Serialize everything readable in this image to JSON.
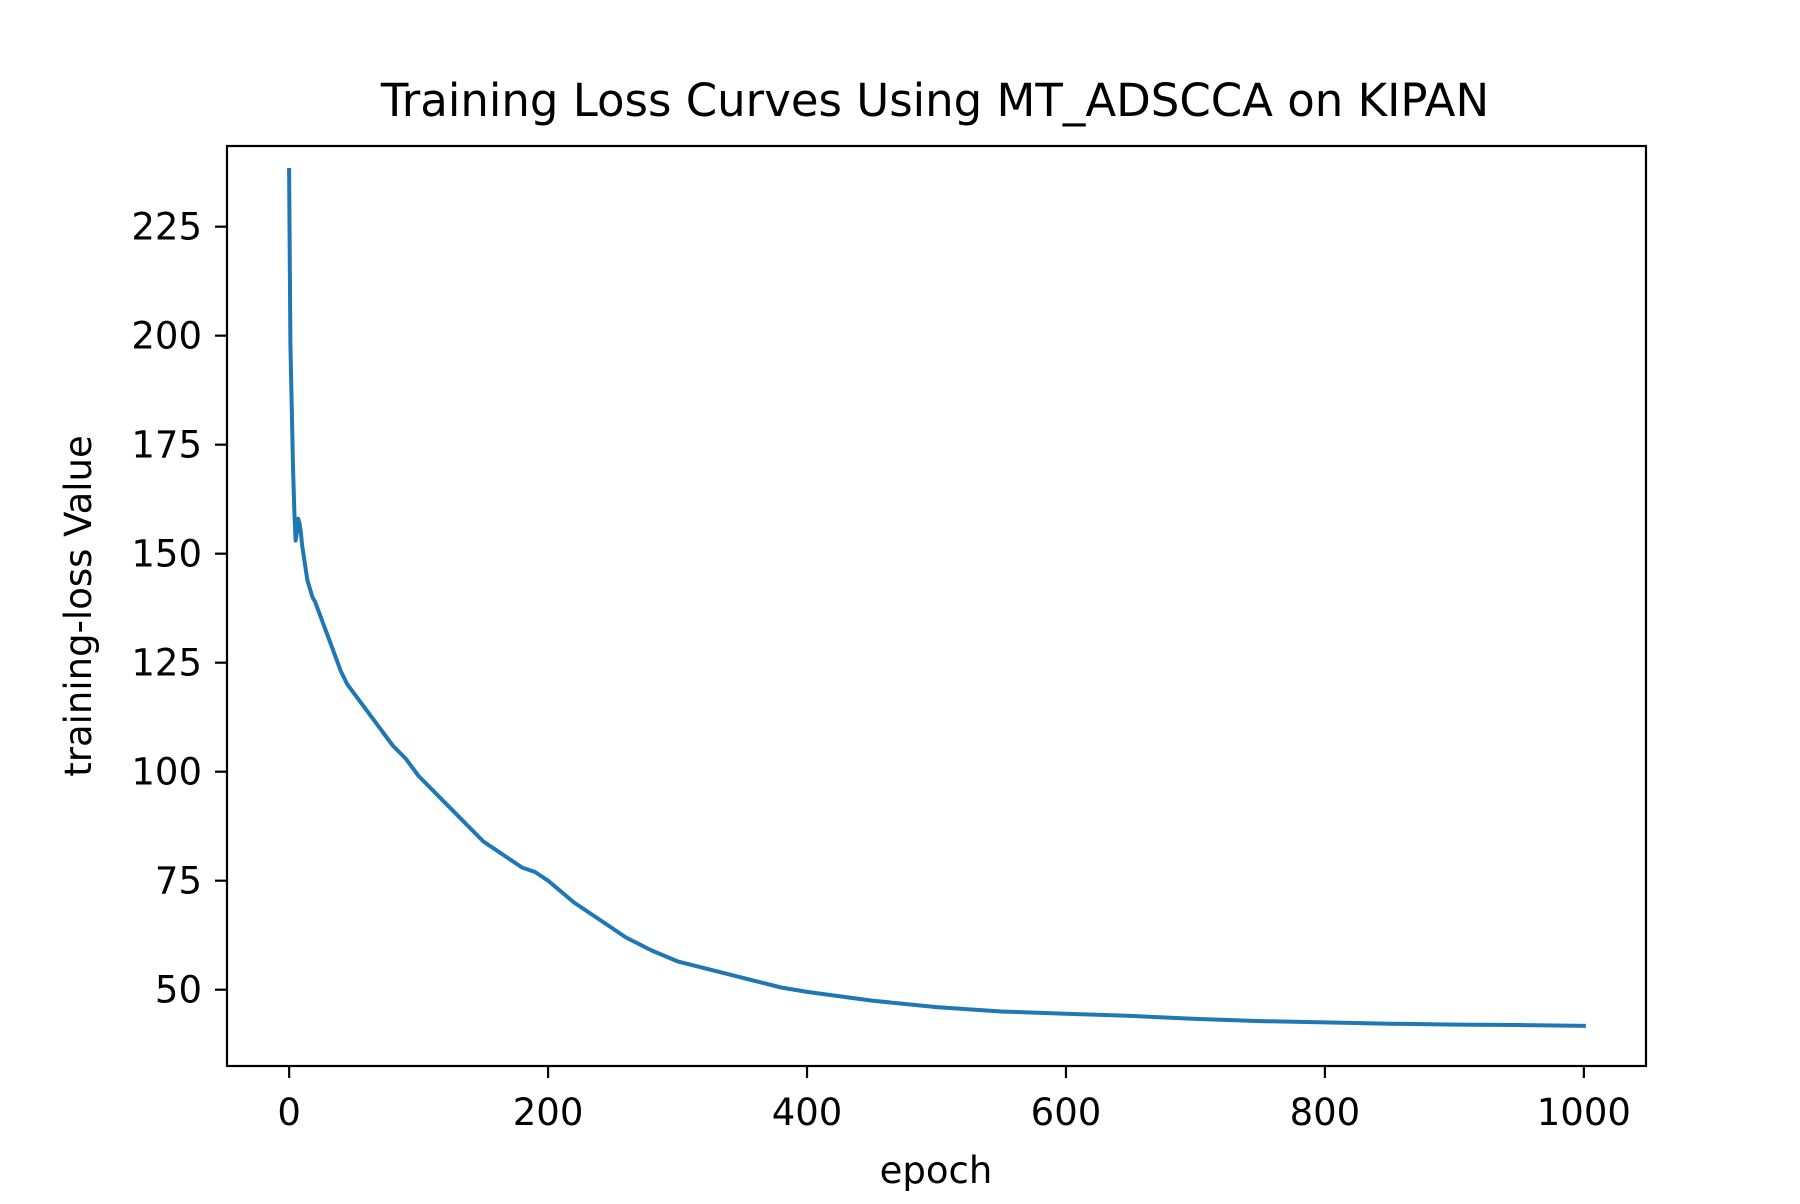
{
  "chart_data": {
    "type": "line",
    "title": "Training Loss Curves Using MT_ADSCCA on KIPAN",
    "xlabel": "epoch",
    "ylabel": "training-loss Value",
    "xlim": [
      -48,
      1048
    ],
    "ylim": [
      32.5,
      243.5
    ],
    "x_ticks": [
      0,
      200,
      400,
      600,
      800,
      1000
    ],
    "x_tick_labels": [
      "0",
      "200",
      "400",
      "600",
      "800",
      "1000"
    ],
    "y_ticks": [
      50,
      75,
      100,
      125,
      150,
      175,
      200,
      225
    ],
    "y_tick_labels": [
      "50",
      "75",
      "100",
      "125",
      "150",
      "175",
      "200",
      "225"
    ],
    "grid": false,
    "legend": "none",
    "line_color": "#1f77b4",
    "series": [
      {
        "name": "training-loss",
        "x": [
          0,
          1,
          2,
          3,
          4,
          5,
          6,
          7,
          8,
          9,
          10,
          12,
          14,
          16,
          18,
          20,
          25,
          30,
          35,
          40,
          45,
          50,
          60,
          70,
          80,
          90,
          100,
          110,
          120,
          130,
          140,
          150,
          160,
          170,
          180,
          190,
          200,
          220,
          240,
          260,
          280,
          300,
          320,
          340,
          360,
          380,
          400,
          450,
          500,
          550,
          600,
          650,
          700,
          750,
          800,
          850,
          900,
          950,
          1000
        ],
        "values": [
          238,
          198,
          184,
          170,
          160,
          153,
          155,
          158,
          157,
          155,
          152,
          148,
          144,
          142,
          140,
          139,
          135,
          131,
          127,
          123,
          120,
          118,
          114,
          110,
          106,
          103,
          99,
          96,
          93,
          90,
          87,
          84,
          82,
          80,
          78,
          77,
          75,
          70,
          66,
          62,
          59,
          56.5,
          55,
          53.5,
          52,
          50.5,
          49.5,
          47.5,
          46,
          45,
          44.5,
          44,
          43.3,
          42.8,
          42.5,
          42.2,
          42,
          41.9,
          41.7
        ]
      }
    ]
  }
}
